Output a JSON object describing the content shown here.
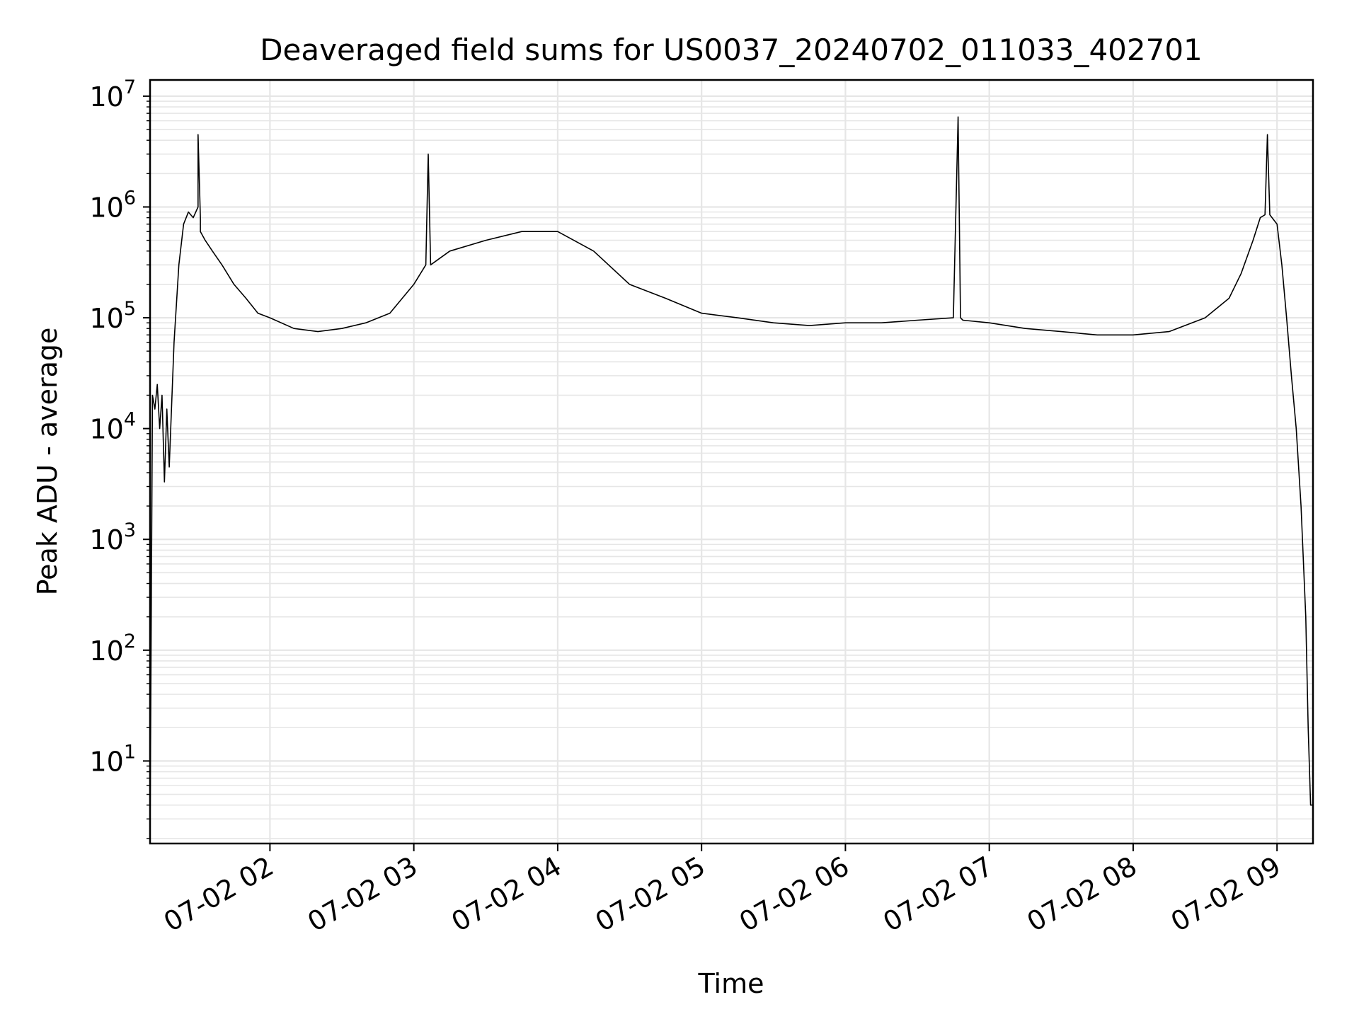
{
  "chart_data": {
    "type": "line",
    "title": "Deaveraged field sums for US0037_20240702_011033_402701",
    "xlabel": "Time",
    "ylabel": "Peak ADU - average",
    "x_axis": {
      "kind": "datetime",
      "range": [
        "2024-07-02 01:10",
        "2024-07-02 09:15"
      ],
      "ticks": [
        {
          "value": "2024-07-02 02:00",
          "label": "07-02 02"
        },
        {
          "value": "2024-07-02 03:00",
          "label": "07-02 03"
        },
        {
          "value": "2024-07-02 04:00",
          "label": "07-02 04"
        },
        {
          "value": "2024-07-02 05:00",
          "label": "07-02 05"
        },
        {
          "value": "2024-07-02 06:00",
          "label": "07-02 06"
        },
        {
          "value": "2024-07-02 07:00",
          "label": "07-02 07"
        },
        {
          "value": "2024-07-02 08:00",
          "label": "07-02 08"
        },
        {
          "value": "2024-07-02 09:00",
          "label": "07-02 09"
        }
      ]
    },
    "y_axis": {
      "scale": "log",
      "range": [
        1.8,
        14000000
      ],
      "ticks": [
        {
          "value": 10,
          "base": "10",
          "exp": "1"
        },
        {
          "value": 100,
          "base": "10",
          "exp": "2"
        },
        {
          "value": 1000,
          "base": "10",
          "exp": "3"
        },
        {
          "value": 10000,
          "base": "10",
          "exp": "4"
        },
        {
          "value": 100000,
          "base": "10",
          "exp": "5"
        },
        {
          "value": 1000000,
          "base": "10",
          "exp": "6"
        },
        {
          "value": 10000000,
          "base": "10",
          "exp": "7"
        }
      ]
    },
    "grid": true,
    "line_color": "#000000",
    "grid_color": "#e6e6e6",
    "series": [
      {
        "x": [
          "2024-07-02 01:10",
          "2024-07-02 01:11",
          "2024-07-02 01:12",
          "2024-07-02 01:13",
          "2024-07-02 01:14",
          "2024-07-02 01:15",
          "2024-07-02 01:16",
          "2024-07-02 01:17",
          "2024-07-02 01:18",
          "2024-07-02 01:20",
          "2024-07-02 01:22",
          "2024-07-02 01:24",
          "2024-07-02 01:26",
          "2024-07-02 01:28",
          "2024-07-02 01:30",
          "2024-07-02 01:30",
          "2024-07-02 01:31",
          "2024-07-02 01:31",
          "2024-07-02 01:33",
          "2024-07-02 01:36",
          "2024-07-02 01:40",
          "2024-07-02 01:45",
          "2024-07-02 01:50",
          "2024-07-02 01:55",
          "2024-07-02 02:00",
          "2024-07-02 02:10",
          "2024-07-02 02:20",
          "2024-07-02 02:30",
          "2024-07-02 02:40",
          "2024-07-02 02:50",
          "2024-07-02 03:00",
          "2024-07-02 03:05",
          "2024-07-02 03:06",
          "2024-07-02 03:07",
          "2024-07-02 03:15",
          "2024-07-02 03:30",
          "2024-07-02 03:45",
          "2024-07-02 04:00",
          "2024-07-02 04:15",
          "2024-07-02 04:30",
          "2024-07-02 04:45",
          "2024-07-02 05:00",
          "2024-07-02 05:15",
          "2024-07-02 05:30",
          "2024-07-02 05:45",
          "2024-07-02 06:00",
          "2024-07-02 06:15",
          "2024-07-02 06:30",
          "2024-07-02 06:45",
          "2024-07-02 06:47",
          "2024-07-02 06:48",
          "2024-07-02 06:49",
          "2024-07-02 07:00",
          "2024-07-02 07:15",
          "2024-07-02 07:30",
          "2024-07-02 07:45",
          "2024-07-02 08:00",
          "2024-07-02 08:15",
          "2024-07-02 08:30",
          "2024-07-02 08:40",
          "2024-07-02 08:45",
          "2024-07-02 08:50",
          "2024-07-02 08:53",
          "2024-07-02 08:55",
          "2024-07-02 08:56",
          "2024-07-02 08:57",
          "2024-07-02 09:00",
          "2024-07-02 09:02",
          "2024-07-02 09:04",
          "2024-07-02 09:06",
          "2024-07-02 09:08",
          "2024-07-02 09:10",
          "2024-07-02 09:12",
          "2024-07-02 09:13",
          "2024-07-02 09:14",
          "2024-07-02 09:15"
        ],
        "y": [
          2,
          20000,
          15000,
          25000,
          10000,
          20000,
          3300,
          15000,
          4500,
          60000,
          300000,
          700000,
          900000,
          800000,
          1000000,
          4500000,
          800000,
          600000,
          500000,
          400000,
          300000,
          200000,
          150000,
          110000,
          100000,
          80000,
          75000,
          80000,
          90000,
          110000,
          200000,
          300000,
          3000000,
          300000,
          400000,
          500000,
          600000,
          600000,
          400000,
          200000,
          150000,
          110000,
          100000,
          90000,
          85000,
          90000,
          90000,
          95000,
          100000,
          6500000,
          100000,
          95000,
          90000,
          80000,
          75000,
          70000,
          70000,
          75000,
          100000,
          150000,
          250000,
          500000,
          800000,
          850000,
          4500000,
          850000,
          700000,
          300000,
          100000,
          30000,
          10000,
          2000,
          200,
          20,
          4,
          4
        ]
      }
    ]
  }
}
